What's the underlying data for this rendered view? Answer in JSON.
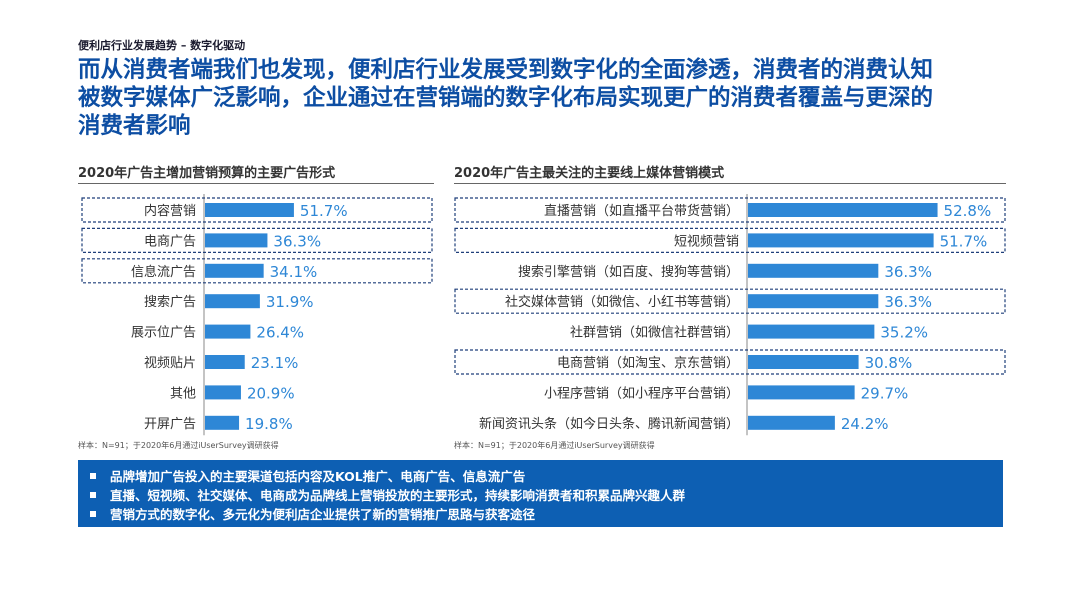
{
  "header": {
    "breadcrumb": "便利店行业发展趋势 – 数字化驱动",
    "headline_lines": [
      "而从消费者端我们也发现，便利店行业发展受到数字化的全面渗透，消费者的消费认知",
      "被数字媒体广泛影响，企业通过在营销端的数字化布局实现更广的消费者覆盖与更深的",
      "消费者影响"
    ]
  },
  "colors": {
    "bar": "#2e87d6",
    "value_text": "#2e87d6",
    "headline": "#0d4ea3",
    "footer_bg": "#0d5fb3"
  },
  "chart_data": [
    {
      "type": "bar",
      "orientation": "horizontal",
      "title": "2020年广告主增加营销预算的主要广告形式",
      "categories": [
        "内容营销",
        "电商广告",
        "信息流广告",
        "搜索广告",
        "展示位广告",
        "视频贴片",
        "其他",
        "开屏广告"
      ],
      "values": [
        51.7,
        36.3,
        34.1,
        31.9,
        26.4,
        23.1,
        20.9,
        19.8
      ],
      "value_labels": [
        "51.7%",
        "36.3%",
        "34.1%",
        "31.9%",
        "26.4%",
        "23.1%",
        "20.9%",
        "19.8%"
      ],
      "highlighted": [
        "内容营销",
        "电商广告",
        "信息流广告"
      ],
      "xlim": [
        0,
        100
      ],
      "source": "样本：N=91；于2020年6月通过iUserSurvey调研获得"
    },
    {
      "type": "bar",
      "orientation": "horizontal",
      "title": "2020年广告主最关注的主要线上媒体营销模式",
      "categories": [
        "直播营销（如直播平台带货营销）",
        "短视频营销",
        "搜索引擎营销（如百度、搜狗等营销）",
        "社交媒体营销（如微信、小红书等营销）",
        "社群营销（如微信社群营销）",
        "电商营销（如淘宝、京东营销）",
        "小程序营销（如小程序平台营销）",
        "新闻资讯头条（如今日头条、腾讯新闻营销）"
      ],
      "values": [
        52.8,
        51.7,
        36.3,
        36.3,
        35.2,
        30.8,
        29.7,
        24.2
      ],
      "value_labels": [
        "52.8%",
        "51.7%",
        "36.3%",
        "36.3%",
        "35.2%",
        "30.8%",
        "29.7%",
        "24.2%"
      ],
      "highlighted": [
        "直播营销（如直播平台带货营销）",
        "短视频营销",
        "社交媒体营销（如微信、小红书等营销）",
        "电商营销（如淘宝、京东营销）"
      ],
      "xlim": [
        0,
        100
      ],
      "source": "样本：N=91；于2020年6月通过iUserSurvey调研获得"
    }
  ],
  "footer": {
    "bullets": [
      "品牌增加广告投入的主要渠道包括内容及KOL推广、电商广告、信息流广告",
      "直播、短视频、社交媒体、电商成为品牌线上营销投放的主要形式，持续影响消费者和积累品牌兴趣人群",
      "营销方式的数字化、多元化为便利店企业提供了新的营销推广思路与获客途径"
    ]
  }
}
